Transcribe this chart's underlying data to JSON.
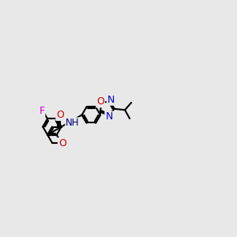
{
  "bg": "#e8e8e8",
  "bond_color": "#000000",
  "lw": 1.5,
  "F_color": "#cc00cc",
  "O_color": "#cc0000",
  "N_color": "#0000cc",
  "NH_color": "#000080",
  "figsize": [
    3.0,
    3.0
  ],
  "dpi": 100,
  "xlim": [
    -0.5,
    8.5
  ],
  "ylim": [
    -2.5,
    2.5
  ]
}
